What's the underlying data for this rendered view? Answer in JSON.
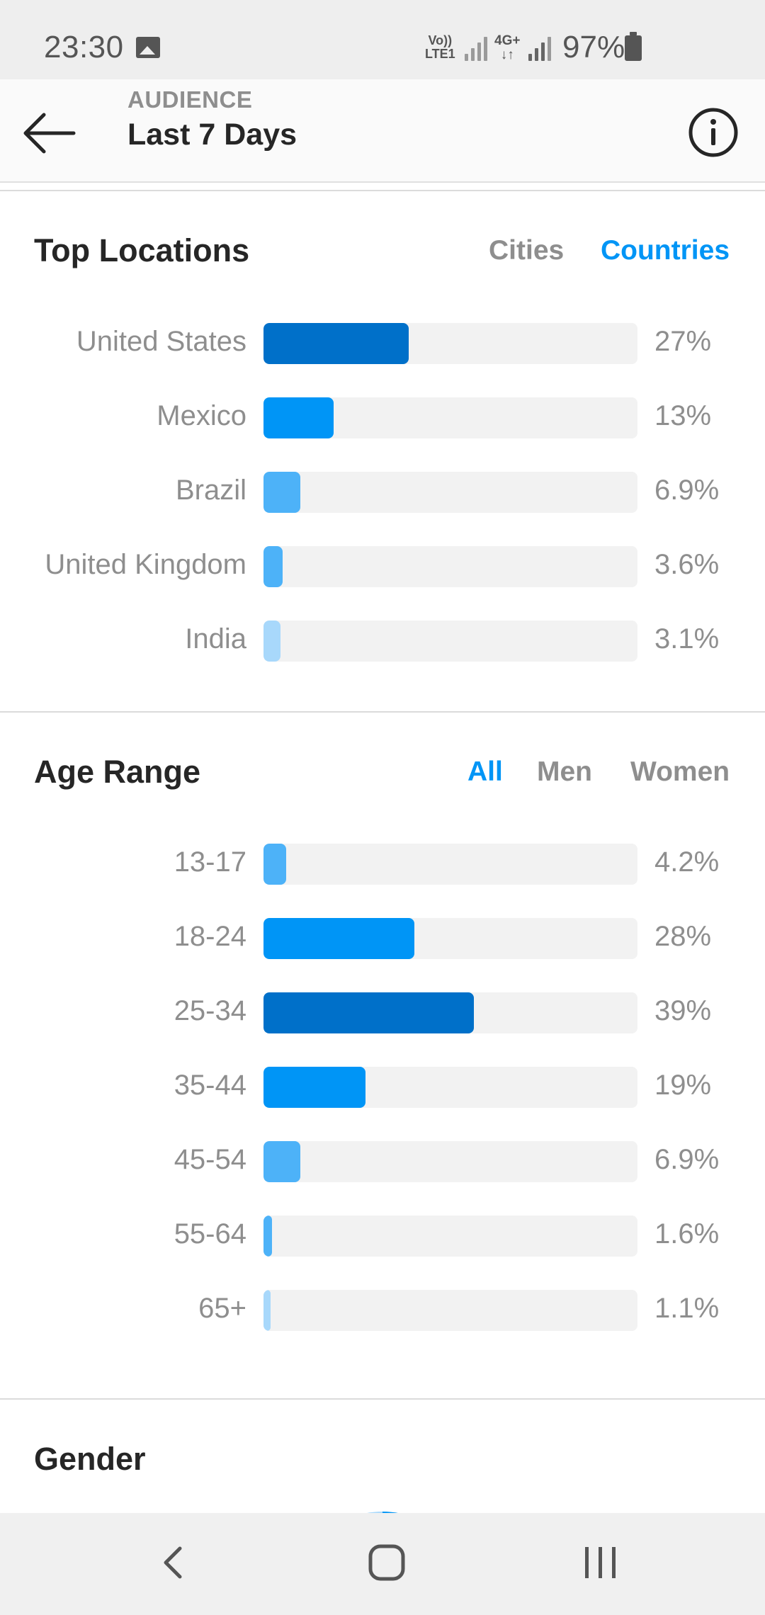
{
  "status_bar": {
    "time": "23:30",
    "network_volte": "Vo))",
    "network_lte": "LTE1",
    "network_4g": "4G+",
    "battery": "97%",
    "icons": [
      "gallery-icon",
      "signal-icon",
      "battery-icon"
    ]
  },
  "header": {
    "overline": "AUDIENCE",
    "title": "Last 7 Days",
    "icons": [
      "back-arrow-icon",
      "info-icon"
    ]
  },
  "top_locations": {
    "title": "Top Locations",
    "tabs": [
      {
        "label": "Cities",
        "active": false
      },
      {
        "label": "Countries",
        "active": true
      }
    ],
    "rows": [
      {
        "label": "United States",
        "value": "27%",
        "fraction": 0.27,
        "color": "#0070c9"
      },
      {
        "label": "Mexico",
        "value": "13%",
        "fraction": 0.13,
        "color": "#0095f6"
      },
      {
        "label": "Brazil",
        "value": "6.9%",
        "fraction": 0.069,
        "color": "#4db2f8"
      },
      {
        "label": "United Kingdom",
        "value": "3.6%",
        "fraction": 0.036,
        "color": "#4db2f8"
      },
      {
        "label": "India",
        "value": "3.1%",
        "fraction": 0.031,
        "color": "#a8d8fb"
      }
    ]
  },
  "age_range": {
    "title": "Age Range",
    "tabs": [
      {
        "label": "All",
        "active": true
      },
      {
        "label": "Men",
        "active": false
      },
      {
        "label": "Women",
        "active": false
      }
    ],
    "rows": [
      {
        "label": "13-17",
        "value": "4.2%",
        "fraction": 0.042,
        "color": "#4db2f8"
      },
      {
        "label": "18-24",
        "value": "28%",
        "fraction": 0.28,
        "color": "#0095f6"
      },
      {
        "label": "25-34",
        "value": "39%",
        "fraction": 0.39,
        "color": "#0070c9"
      },
      {
        "label": "35-44",
        "value": "19%",
        "fraction": 0.19,
        "color": "#0095f6"
      },
      {
        "label": "45-54",
        "value": "6.9%",
        "fraction": 0.069,
        "color": "#4db2f8"
      },
      {
        "label": "55-64",
        "value": "1.6%",
        "fraction": 0.016,
        "color": "#4db2f8"
      },
      {
        "label": "65+",
        "value": "1.1%",
        "fraction": 0.011,
        "color": "#a8d8fb"
      }
    ]
  },
  "gender": {
    "title": "Gender"
  },
  "colors": {
    "accent": "#0095f6",
    "dark_bar": "#0070c9",
    "mid_bar": "#0095f6",
    "light_bar": "#4db2f8",
    "lightest_bar": "#a8d8fb",
    "track": "#f2f2f2",
    "muted_text": "#8e8e8e"
  },
  "nav_bar": {
    "icons": [
      "nav-back-icon",
      "nav-home-icon",
      "nav-recents-icon"
    ]
  }
}
